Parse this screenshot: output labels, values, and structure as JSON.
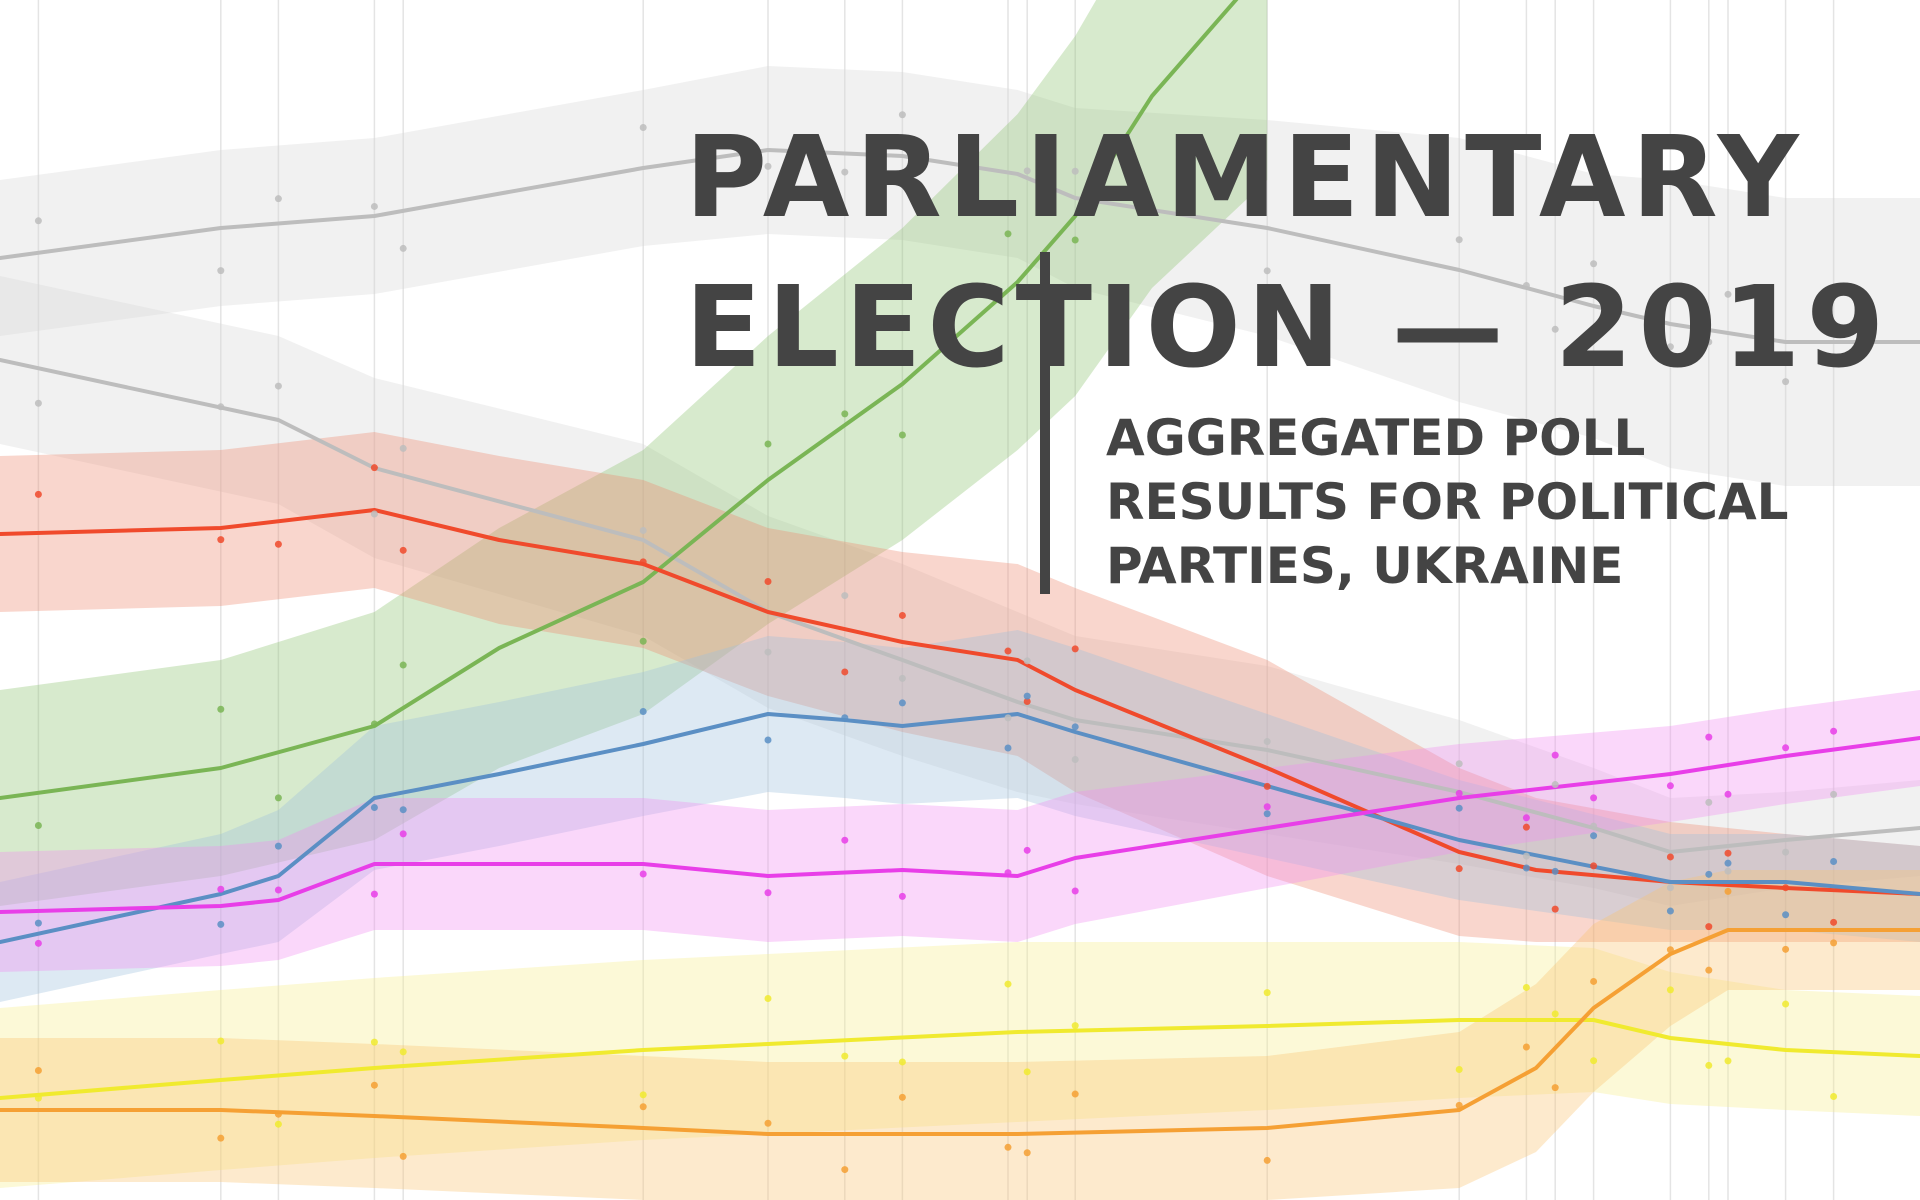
{
  "title": {
    "line1": "PARLIAMENTARY",
    "line2": "ELECTION — 2019"
  },
  "subtitle": {
    "line1": "AGGREGATED POLL",
    "line2": "RESULTS FOR POLITICAL",
    "line3": "PARTIES, UKRAINE"
  },
  "chart_data": {
    "type": "line",
    "title": "PARLIAMENTARY ELECTION — 2019",
    "subtitle": "AGGREGATED POLL RESULTS FOR POLITICAL PARTIES, UKRAINE",
    "axes_visible": false,
    "grid": "vertical lines at poll dates",
    "xlim": [
      0,
      100
    ],
    "ylim": [
      0,
      100
    ],
    "poll_dates": [
      2,
      11.5,
      14.5,
      19.5,
      21,
      33.5,
      40,
      44,
      47,
      52.5,
      53.5,
      56,
      66,
      76,
      79.5,
      81,
      83,
      87,
      89,
      90,
      93,
      95.5
    ],
    "series": [
      {
        "color": "#bdbdbd",
        "band_color": "#d6d6d6",
        "x": [
          0,
          11.5,
          19.5,
          33.5,
          40,
          47,
          53,
          56,
          66,
          76,
          83,
          87,
          93,
          100
        ],
        "y": [
          78.5,
          81,
          82,
          86,
          87.5,
          87,
          85.5,
          83.5,
          81,
          77.5,
          74.5,
          73,
          71.5,
          71.5
        ],
        "band": [
          6.5,
          6.5,
          6.5,
          6.5,
          7,
          7,
          7,
          7.5,
          9,
          11,
          11,
          12,
          12,
          12
        ]
      },
      {
        "color": "#bdbdbd",
        "band_color": "#d6d6d6",
        "x": [
          0,
          14.5,
          19.5,
          33.5,
          40,
          47,
          53,
          56,
          66,
          76,
          83,
          87,
          93,
          100
        ],
        "y": [
          70,
          65,
          61,
          55,
          49,
          45,
          41.5,
          40,
          37.5,
          34,
          31,
          29,
          30,
          31
        ],
        "band": [
          7,
          7,
          7.5,
          8,
          8,
          8,
          7.5,
          7,
          7,
          6,
          5,
          4.5,
          4,
          4
        ]
      },
      {
        "color": "#7ab555",
        "band_color": "#8cc270",
        "x": [
          0,
          11.5,
          19.5,
          26,
          33.5,
          40,
          47,
          53,
          56,
          60,
          66
        ],
        "y": [
          33.5,
          36,
          39.5,
          46,
          51.5,
          60,
          68,
          76.5,
          82,
          92,
          103
        ],
        "band": [
          9,
          9,
          9.5,
          10,
          11,
          12,
          13,
          14,
          15,
          16,
          18
        ]
      },
      {
        "color": "#f04a2c",
        "band_color": "#ef8a6f",
        "x": [
          0,
          11.5,
          19.5,
          26,
          33.5,
          40,
          47,
          53,
          56,
          66,
          76,
          80,
          87,
          93,
          100
        ],
        "y": [
          55.5,
          56,
          57.5,
          55,
          53,
          49,
          46.5,
          45,
          42.5,
          36,
          29,
          27.5,
          26.5,
          26,
          25.5
        ],
        "band": [
          6.5,
          6.5,
          6.5,
          7,
          7,
          7,
          7.5,
          8,
          8.5,
          9,
          7,
          6,
          5,
          4.5,
          4
        ]
      },
      {
        "color": "#5b8fc4",
        "band_color": "#9fbfde",
        "x": [
          0,
          11.5,
          14.5,
          19.5,
          26,
          33.5,
          40,
          44,
          47,
          53,
          56,
          66,
          76,
          87,
          93,
          100
        ],
        "y": [
          21.5,
          25.5,
          27,
          33.5,
          35.5,
          38,
          40.5,
          40,
          39.5,
          40.5,
          39,
          34.5,
          30,
          26.5,
          26.5,
          25.5
        ],
        "band": [
          5,
          5,
          5.5,
          6,
          6,
          6,
          6.5,
          6.5,
          6.5,
          7,
          7,
          6,
          5,
          4,
          4,
          4
        ]
      },
      {
        "color": "#e83ee8",
        "band_color": "#f08cf0",
        "x": [
          0,
          11.5,
          14.5,
          19.5,
          26,
          33.5,
          40,
          47,
          53,
          56,
          66,
          76,
          87,
          93,
          100
        ],
        "y": [
          24,
          24.5,
          25,
          28,
          28,
          28,
          27,
          27.5,
          27,
          28.5,
          31,
          33.5,
          35.5,
          37,
          38.5
        ],
        "band": [
          5,
          5,
          5,
          5.5,
          5.5,
          5.5,
          5.5,
          5.5,
          5.5,
          5.5,
          5,
          4.5,
          4,
          4,
          4
        ]
      },
      {
        "color": "#f0ea2f",
        "band_color": "#f7ef8c",
        "x": [
          0,
          11.5,
          19.5,
          33.5,
          40,
          53,
          66,
          76,
          83,
          87,
          93,
          100
        ],
        "y": [
          8.5,
          10,
          11,
          12.5,
          13,
          14,
          14.5,
          15,
          15,
          13.5,
          12.5,
          12
        ],
        "band": [
          7.5,
          7.5,
          7.5,
          7.5,
          7.5,
          7.5,
          7,
          6.5,
          6,
          5.5,
          5,
          5
        ]
      },
      {
        "color": "#f5a034",
        "band_color": "#f8c470",
        "x": [
          0,
          11.5,
          19.5,
          33.5,
          40,
          53,
          66,
          76,
          80,
          83,
          87,
          90,
          93,
          100
        ],
        "y": [
          7.5,
          7.5,
          7,
          6,
          5.5,
          5.5,
          6,
          7.5,
          11,
          16,
          20.5,
          22.5,
          22.5,
          22.5
        ],
        "band": [
          6,
          6,
          6,
          6,
          6,
          6,
          6,
          6.5,
          7,
          7,
          6,
          5,
          5,
          5
        ]
      }
    ]
  }
}
